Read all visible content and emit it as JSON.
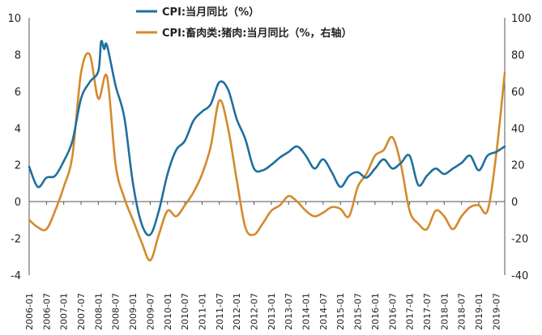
{
  "chart_data": {
    "type": "line",
    "x_labels": [
      "2006-01",
      "2006-07",
      "2007-01",
      "2007-07",
      "2008-01",
      "2008-07",
      "2009-01",
      "2009-07",
      "2010-01",
      "2010-07",
      "2011-01",
      "2011-07",
      "2012-01",
      "2012-07",
      "2013-01",
      "2013-07",
      "2014-01",
      "2014-07",
      "2015-01",
      "2015-07",
      "2016-01",
      "2016-07",
      "2017-01",
      "2017-07",
      "2018-01",
      "2018-07",
      "2019-01",
      "2019-07"
    ],
    "y_left": {
      "ticks": [
        "-4",
        "-2",
        "0",
        "2",
        "4",
        "6",
        "8",
        "10"
      ],
      "min": -4,
      "max": 10
    },
    "y_right": {
      "ticks": [
        "-40",
        "-20",
        "0",
        "20",
        "40",
        "60",
        "80",
        "100"
      ],
      "min": -40,
      "max": 100
    },
    "legend": {
      "position": "top",
      "entries": [
        "CPI:当月同比（%）",
        "CPI:畜肉类:猪肉:当月同比（%，右轴）"
      ]
    },
    "colors": {
      "cpi": "#1f6f9f",
      "pork": "#d48a2c"
    },
    "series": [
      {
        "name": "CPI:当月同比（%）",
        "axis": "left",
        "x": [
          2006.0,
          2006.25,
          2006.5,
          2006.75,
          2007.0,
          2007.25,
          2007.5,
          2007.75,
          2008.0,
          2008.08,
          2008.17,
          2008.25,
          2008.5,
          2008.75,
          2009.0,
          2009.25,
          2009.5,
          2009.75,
          2010.0,
          2010.25,
          2010.5,
          2010.75,
          2011.0,
          2011.25,
          2011.5,
          2011.75,
          2012.0,
          2012.25,
          2012.5,
          2012.75,
          2013.0,
          2013.25,
          2013.5,
          2013.75,
          2014.0,
          2014.25,
          2014.5,
          2014.75,
          2015.0,
          2015.25,
          2015.5,
          2015.75,
          2016.0,
          2016.25,
          2016.5,
          2016.75,
          2017.0,
          2017.25,
          2017.5,
          2017.75,
          2018.0,
          2018.25,
          2018.5,
          2018.75,
          2019.0,
          2019.25,
          2019.5,
          2019.75
        ],
        "values": [
          1.9,
          0.8,
          1.3,
          1.4,
          2.2,
          3.3,
          5.6,
          6.5,
          7.1,
          8.7,
          8.3,
          8.5,
          6.3,
          4.6,
          1.0,
          -1.2,
          -1.8,
          -0.5,
          1.5,
          2.8,
          3.3,
          4.4,
          4.9,
          5.3,
          6.5,
          6.1,
          4.5,
          3.4,
          1.8,
          1.7,
          2.0,
          2.4,
          2.7,
          3.0,
          2.5,
          1.8,
          2.3,
          1.6,
          0.8,
          1.4,
          1.6,
          1.3,
          1.8,
          2.3,
          1.8,
          2.1,
          2.5,
          0.9,
          1.4,
          1.8,
          1.5,
          1.8,
          2.1,
          2.5,
          1.7,
          2.5,
          2.7,
          3.0
        ]
      },
      {
        "name": "CPI:畜肉类:猪肉:当月同比（%，右轴）",
        "axis": "right",
        "x": [
          2006.0,
          2006.25,
          2006.5,
          2006.75,
          2007.0,
          2007.25,
          2007.5,
          2007.75,
          2008.0,
          2008.25,
          2008.5,
          2008.75,
          2009.0,
          2009.25,
          2009.5,
          2009.75,
          2010.0,
          2010.25,
          2010.5,
          2010.75,
          2011.0,
          2011.25,
          2011.5,
          2011.75,
          2012.0,
          2012.25,
          2012.5,
          2012.75,
          2013.0,
          2013.25,
          2013.5,
          2013.75,
          2014.0,
          2014.25,
          2014.5,
          2014.75,
          2015.0,
          2015.25,
          2015.5,
          2015.75,
          2016.0,
          2016.25,
          2016.5,
          2016.75,
          2017.0,
          2017.25,
          2017.5,
          2017.75,
          2018.0,
          2018.25,
          2018.5,
          2018.75,
          2019.0,
          2019.25,
          2019.5,
          2019.75
        ],
        "values": [
          -10,
          -14,
          -15,
          -5,
          8,
          25,
          70,
          80,
          56,
          68,
          20,
          2,
          -10,
          -22,
          -32,
          -18,
          -5,
          -8,
          -2,
          5,
          15,
          30,
          55,
          40,
          12,
          -14,
          -18,
          -12,
          -5,
          -2,
          3,
          0,
          -5,
          -8,
          -6,
          -3,
          -4,
          -8,
          8,
          15,
          25,
          28,
          35,
          20,
          -5,
          -12,
          -15,
          -5,
          -8,
          -15,
          -8,
          -3,
          -2,
          -5,
          25,
          70
        ]
      }
    ]
  }
}
